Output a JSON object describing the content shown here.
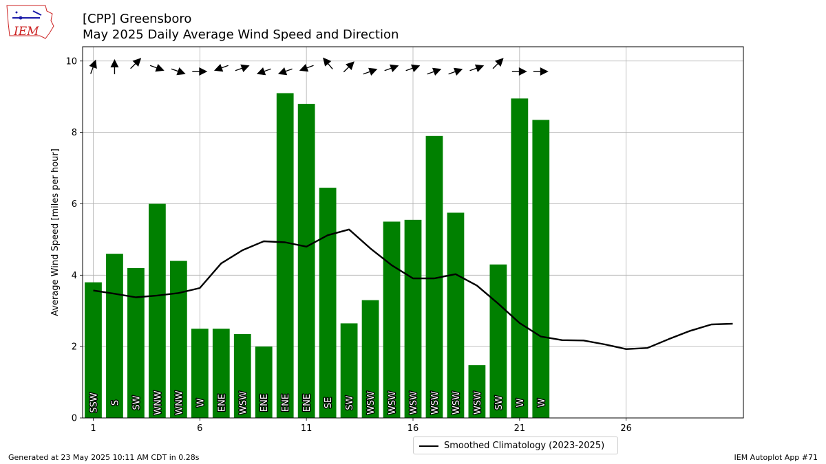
{
  "header": {
    "title_line1": "[CPP] Greensboro",
    "title_line2": "May 2025 Daily Average Wind Speed and Direction"
  },
  "logo": {
    "text": "IEM"
  },
  "footer": {
    "generated": "Generated at 23 May 2025 10:11 AM CDT in 0.28s",
    "app": "IEM Autoplot App #71"
  },
  "legend": {
    "label": "Smoothed Climatology (2023-2025)"
  },
  "colors": {
    "bar": "#008000",
    "line": "#000000",
    "grid": "#b0b0b0",
    "logo_red": "#cc2222",
    "logo_blue": "#1a1aa8"
  },
  "chart_data": {
    "type": "bar",
    "ylabel": "Average Wind Speed [miles per hour]",
    "xlim": [
      0.5,
      31.5
    ],
    "ylim": [
      0,
      10.4
    ],
    "xticks": [
      1,
      6,
      11,
      16,
      26
    ],
    "xtick_labels": [
      "1",
      "6",
      "11",
      "16",
      "26"
    ],
    "xticks_extra": [
      21
    ],
    "xtick_labels_extra": [
      "21"
    ],
    "yticks": [
      0,
      2,
      4,
      6,
      8,
      10
    ],
    "ytick_labels": [
      "0",
      "2",
      "4",
      "6",
      "8",
      "10"
    ],
    "grid": true,
    "legend_position": "bottom-center",
    "bars": {
      "days": [
        1,
        2,
        3,
        4,
        5,
        6,
        7,
        8,
        9,
        10,
        11,
        12,
        13,
        14,
        15,
        16,
        17,
        18,
        19,
        20,
        21,
        22
      ],
      "values": [
        3.8,
        4.6,
        4.2,
        6.0,
        4.4,
        2.5,
        2.5,
        2.35,
        2.0,
        9.1,
        8.8,
        6.45,
        2.65,
        3.3,
        5.5,
        5.55,
        7.9,
        5.75,
        1.48,
        4.3,
        8.95,
        8.35
      ],
      "direction_labels": [
        "SSW",
        "S",
        "SW",
        "WNW",
        "WNW",
        "W",
        "ENE",
        "WSW",
        "ENE",
        "ENE",
        "ENE",
        "SE",
        "SW",
        "WSW",
        "WSW",
        "WSW",
        "WSW",
        "WSW",
        "WSW",
        "SW",
        "W",
        "W"
      ],
      "direction_degrees": [
        200,
        180,
        225,
        290,
        290,
        270,
        70,
        250,
        70,
        70,
        70,
        140,
        225,
        250,
        250,
        250,
        250,
        250,
        250,
        225,
        270,
        270
      ]
    },
    "series": [
      {
        "name": "Smoothed Climatology (2023-2025)",
        "x": [
          1,
          2,
          3,
          4,
          5,
          6,
          7,
          8,
          9,
          10,
          11,
          12,
          13,
          14,
          15,
          16,
          17,
          18,
          19,
          20,
          21,
          22,
          23,
          24,
          25,
          26,
          27,
          28,
          29,
          30,
          31
        ],
        "values": [
          3.57,
          3.48,
          3.38,
          3.43,
          3.5,
          3.64,
          4.33,
          4.7,
          4.95,
          4.92,
          4.8,
          5.12,
          5.28,
          4.75,
          4.28,
          3.91,
          3.91,
          4.03,
          3.71,
          3.2,
          2.66,
          2.28,
          2.18,
          2.17,
          2.06,
          1.93,
          1.96,
          2.21,
          2.44,
          2.62,
          2.64
        ]
      }
    ]
  }
}
